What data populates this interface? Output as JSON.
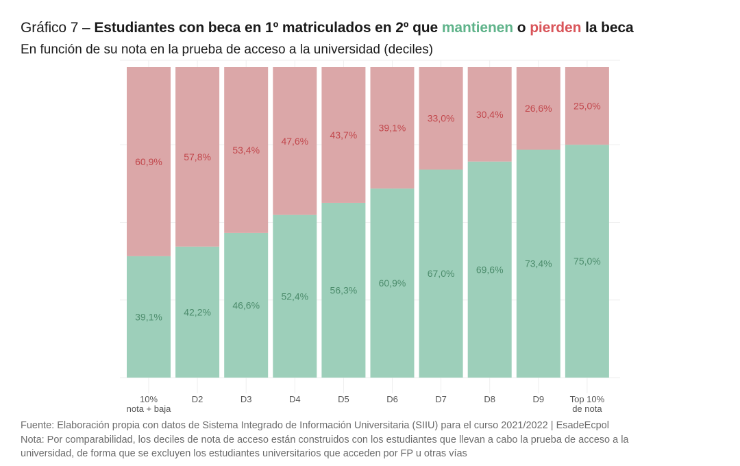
{
  "header": {
    "title_lead": "Gráfico 7 – ",
    "title_bold_1": "Estudiantes con beca en 1º matriculados en 2º que ",
    "title_keep": "mantienen",
    "title_mid": " o ",
    "title_lose": "pierden",
    "title_end": " la beca",
    "subtitle": "En función de su nota en la prueba de acceso a la universidad (deciles)"
  },
  "colors": {
    "keep": "#9dcfba",
    "lose": "#dba7a8",
    "keep_title": "#5fb38a",
    "lose_title": "#d9555a",
    "keep_label": "#4c8c6c",
    "lose_label": "#c2474c",
    "grid": "#eeeeee"
  },
  "chart_data": {
    "type": "bar",
    "stacked": true,
    "title": "Estudiantes con beca en 1º matriculados en 2º que mantienen o pierden la beca",
    "subtitle": "En función de su nota en la prueba de acceso a la universidad (deciles)",
    "categories": [
      [
        "10%",
        "nota + baja"
      ],
      [
        "D2"
      ],
      [
        "D3"
      ],
      [
        "D4"
      ],
      [
        "D5"
      ],
      [
        "D6"
      ],
      [
        "D7"
      ],
      [
        "D8"
      ],
      [
        "D9"
      ],
      [
        "Top 10%",
        "de nota"
      ]
    ],
    "series": [
      {
        "name": "mantienen",
        "values": [
          39.1,
          42.2,
          46.6,
          52.4,
          56.3,
          60.9,
          67.0,
          69.6,
          73.4,
          75.0
        ],
        "labels": [
          "39,1%",
          "42,2%",
          "46,6%",
          "52,4%",
          "56,3%",
          "60,9%",
          "67,0%",
          "69,6%",
          "73,4%",
          "75,0%"
        ]
      },
      {
        "name": "pierden",
        "values": [
          60.9,
          57.8,
          53.4,
          47.6,
          43.7,
          39.1,
          33.0,
          30.4,
          26.6,
          25.0
        ],
        "labels": [
          "60,9%",
          "57,8%",
          "53,4%",
          "47,6%",
          "43,7%",
          "39,1%",
          "33,0%",
          "30,4%",
          "26,6%",
          "25,0%"
        ]
      }
    ],
    "xlabel": "",
    "ylabel": "",
    "ylim": [
      0,
      100
    ],
    "grid": true,
    "legend": "in-title"
  },
  "footer": {
    "source": "Fuente: Elaboración propia con datos de Sistema Integrado de Información Universitaria (SIIU) para el curso 2021/2022 | EsadeEcpol",
    "note_line1": "Nota: Por comparabilidad, los deciles de nota de acceso están construidos con los estudiantes que llevan a cabo la prueba de acceso a la",
    "note_line2": "universidad, de forma que se excluyen los estudiantes universitarios que acceden por FP u otras vías"
  }
}
